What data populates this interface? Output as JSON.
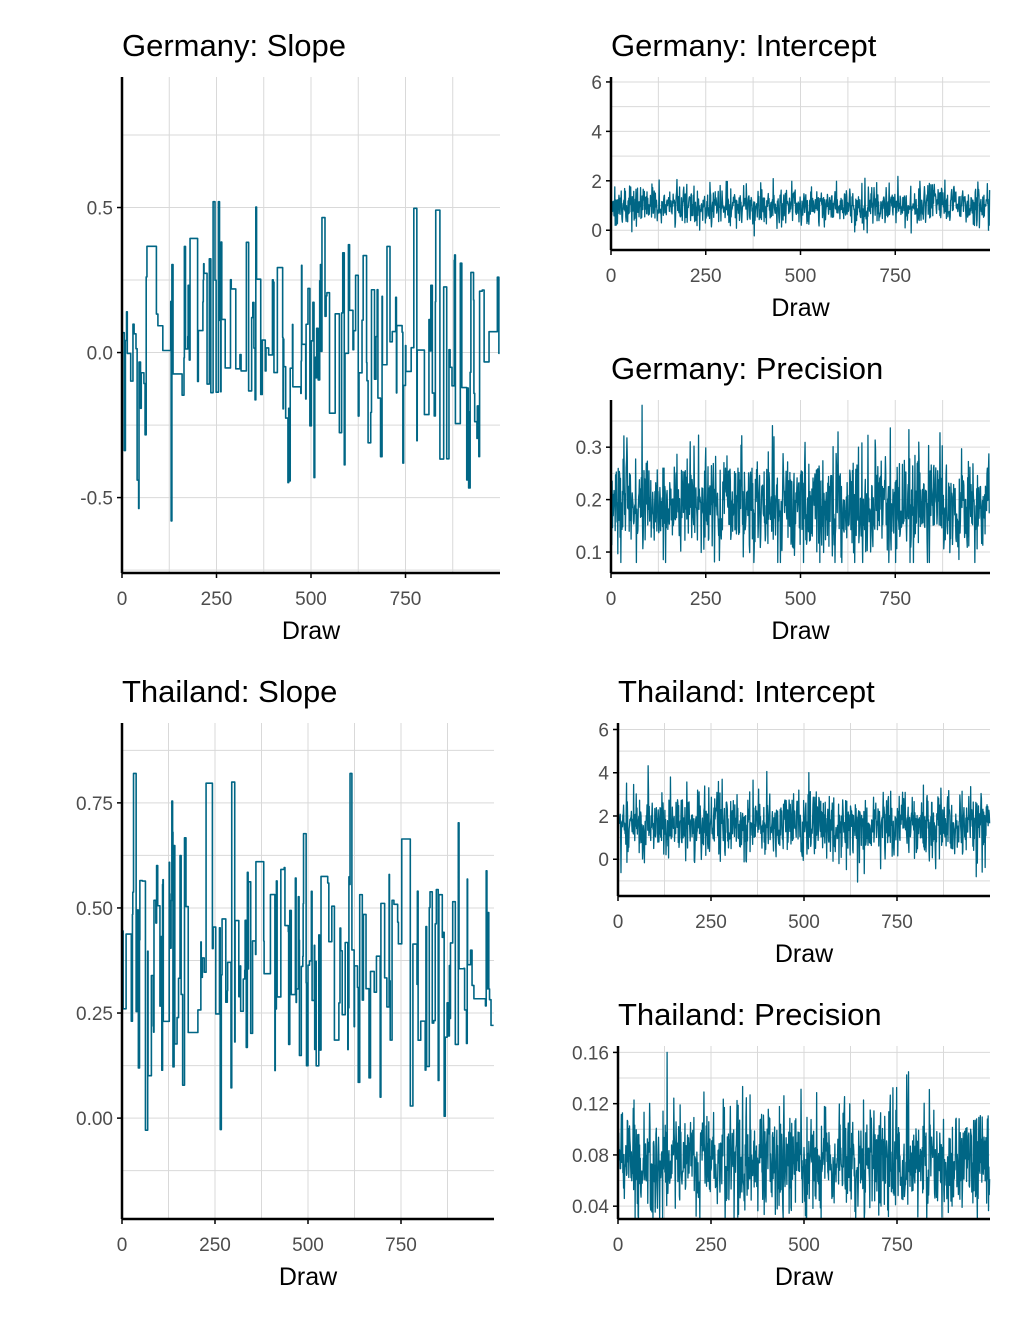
{
  "colors": {
    "trace": "#006685",
    "grid": "#d9d9d9",
    "axis": "#000000",
    "tick_text": "#4d4d4d"
  },
  "chart_data": [
    {
      "id": "germany_slope",
      "type": "line",
      "title": "Germany: Slope",
      "xlabel": "Draw",
      "ylabel": "",
      "xlim": [
        0,
        1000
      ],
      "ylim": [
        -0.76,
        0.95
      ],
      "xticks": [
        0,
        250,
        500,
        750
      ],
      "xticklabels": [
        "0",
        "250",
        "500",
        "750"
      ],
      "yticks": [
        -0.5,
        0.0,
        0.5
      ],
      "yticklabels": [
        "-0.5",
        "0.0",
        "0.5"
      ],
      "series": [
        {
          "n_draws": 1000,
          "center": 0.02,
          "min": -0.69,
          "max": 0.52
        }
      ]
    },
    {
      "id": "germany_intercept",
      "type": "line",
      "title": "Germany: Intercept",
      "xlabel": "Draw",
      "ylabel": "",
      "xlim": [
        0,
        1000
      ],
      "ylim": [
        -0.8,
        6.2
      ],
      "xticks": [
        0,
        250,
        500,
        750
      ],
      "xticklabels": [
        "0",
        "250",
        "500",
        "750"
      ],
      "yticks": [
        0,
        2,
        4,
        6
      ],
      "yticklabels": [
        "0",
        "2",
        "4",
        "6"
      ],
      "series": [
        {
          "n_draws": 1000,
          "center": 1.0,
          "min": -0.5,
          "max": 2.4
        }
      ]
    },
    {
      "id": "germany_precision",
      "type": "line",
      "title": "Germany: Precision",
      "xlabel": "Draw",
      "ylabel": "",
      "xlim": [
        0,
        1000
      ],
      "ylim": [
        0.06,
        0.39
      ],
      "xticks": [
        0,
        250,
        500,
        750
      ],
      "xticklabels": [
        "0",
        "250",
        "500",
        "750"
      ],
      "yticks": [
        0.1,
        0.2,
        0.3
      ],
      "yticklabels": [
        "0.1",
        "0.2",
        "0.3"
      ],
      "series": [
        {
          "n_draws": 1000,
          "center": 0.19,
          "min": 0.08,
          "max": 0.38
        }
      ]
    },
    {
      "id": "thailand_slope",
      "type": "line",
      "title": "Thailand: Slope",
      "xlabel": "Draw",
      "ylabel": "",
      "xlim": [
        0,
        1000
      ],
      "ylim": [
        -0.24,
        0.94
      ],
      "xticks": [
        0,
        250,
        500,
        750
      ],
      "xticklabels": [
        "0",
        "250",
        "500",
        "750"
      ],
      "yticks": [
        0.0,
        0.25,
        0.5,
        0.75
      ],
      "yticklabels": [
        "0.00",
        "0.25",
        "0.50",
        "0.75"
      ],
      "series": [
        {
          "n_draws": 1000,
          "center": 0.38,
          "min": -0.17,
          "max": 0.82
        }
      ]
    },
    {
      "id": "thailand_intercept",
      "type": "line",
      "title": "Thailand: Intercept",
      "xlabel": "Draw",
      "ylabel": "",
      "xlim": [
        0,
        1000
      ],
      "ylim": [
        -1.7,
        6.3
      ],
      "xticks": [
        0,
        250,
        500,
        750
      ],
      "xticklabels": [
        "0",
        "250",
        "500",
        "750"
      ],
      "yticks": [
        0,
        2,
        4,
        6
      ],
      "yticklabels": [
        "0",
        "2",
        "4",
        "6"
      ],
      "series": [
        {
          "n_draws": 1000,
          "center": 1.6,
          "min": -1.3,
          "max": 4.6
        }
      ]
    },
    {
      "id": "thailand_precision",
      "type": "line",
      "title": "Thailand: Precision",
      "xlabel": "Draw",
      "ylabel": "",
      "xlim": [
        0,
        1000
      ],
      "ylim": [
        0.03,
        0.165
      ],
      "xticks": [
        0,
        250,
        500,
        750
      ],
      "xticklabels": [
        "0",
        "250",
        "500",
        "750"
      ],
      "yticks": [
        0.04,
        0.08,
        0.12,
        0.16
      ],
      "yticklabels": [
        "0.04",
        "0.08",
        "0.12",
        "0.16"
      ],
      "series": [
        {
          "n_draws": 1000,
          "center": 0.076,
          "min": 0.03,
          "max": 0.16
        }
      ]
    }
  ]
}
